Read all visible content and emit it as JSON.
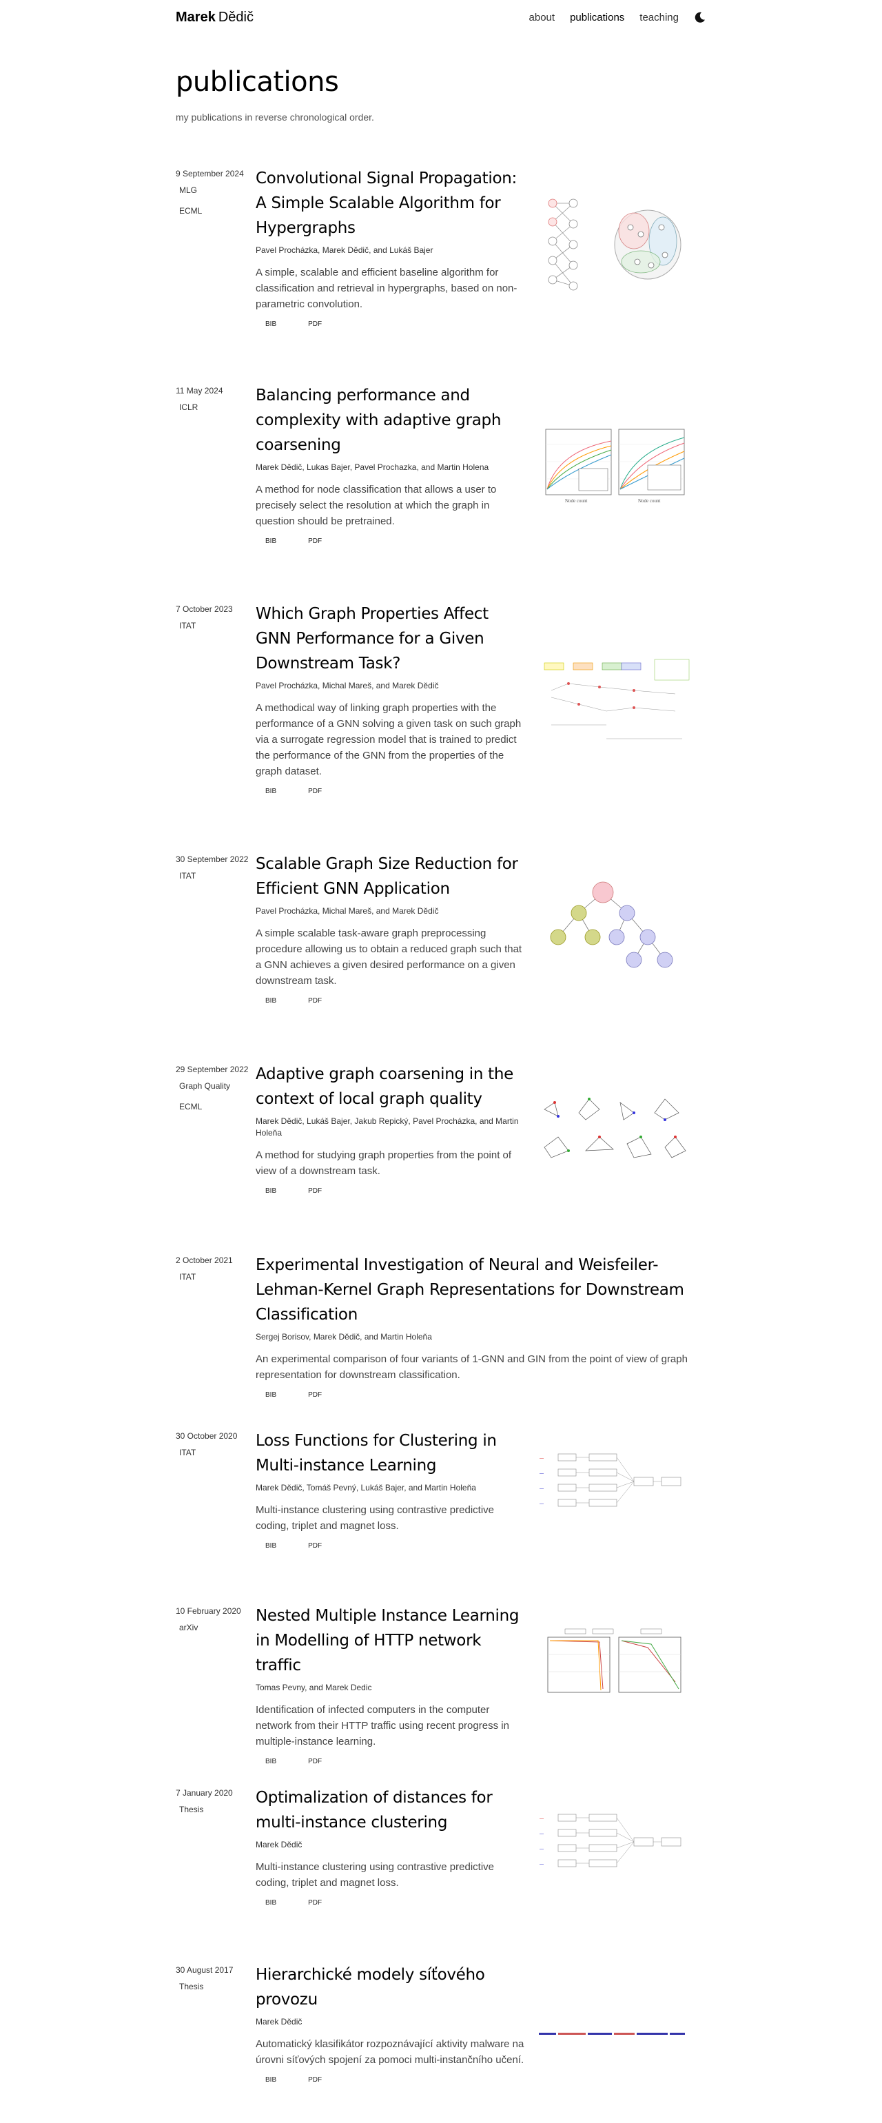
{
  "nav": {
    "brand_first": "Marek",
    "brand_last": "Dědič",
    "links": [
      "about",
      "publications",
      "teaching"
    ]
  },
  "page": {
    "title": "publications",
    "description": "my publications in reverse chronological order."
  },
  "publications": [
    {
      "date": "9 September 2024",
      "venues": [
        "MLG",
        "ECML"
      ],
      "title": "Convolutional Signal Propagation: A Simple Scalable Algorithm for Hypergraphs",
      "authors": "Pavel Procházka, Marek Dědič, and Lukáš Bajer",
      "abstract": "A simple, scalable and efficient baseline algorithm for classification and retrieval in hypergraphs, based on non-parametric convolution.",
      "links": [
        "BIB",
        "PDF"
      ]
    },
    {
      "date": "11 May 2024",
      "venues": [
        "ICLR"
      ],
      "title": "Balancing performance and complexity with adaptive graph coarsening",
      "authors": "Marek Dědič, Lukas Bajer, Pavel Prochazka, and Martin Holena",
      "abstract": "A method for node classification that allows a user to precisely select the resolution at which the graph in question should be pretrained.",
      "links": [
        "BIB",
        "PDF"
      ]
    },
    {
      "date": "7 October 2023",
      "venues": [
        "ITAT"
      ],
      "title": "Which Graph Properties Affect GNN Performance for a Given Downstream Task?",
      "authors": "Pavel Procházka, Michal Mareš, and Marek Dědič",
      "abstract": "A methodical way of linking graph properties with the performance of a GNN solving a given task on such graph via a surrogate regression model that is trained to predict the performance of the GNN from the properties of the graph dataset.",
      "links": [
        "BIB",
        "PDF"
      ]
    },
    {
      "date": "30 September 2022",
      "venues": [
        "ITAT"
      ],
      "title": "Scalable Graph Size Reduction for Efficient GNN Application",
      "authors": "Pavel Procházka, Michal Mareš, and Marek Dědič",
      "abstract": "A simple scalable task-aware graph preprocessing procedure allowing us to obtain a reduced graph such that a GNN achieves a given desired performance on a given downstream task.",
      "links": [
        "BIB",
        "PDF"
      ]
    },
    {
      "date": "29 September 2022",
      "venues": [
        "Graph Quality",
        "ECML"
      ],
      "title": "Adaptive graph coarsening in the context of local graph quality",
      "authors": "Marek Dědič, Lukáš Bajer, Jakub Repický, Pavel Procházka, and Martin Holeňa",
      "abstract": "A method for studying graph properties from the point of view of a downstream task.",
      "links": [
        "BIB",
        "PDF"
      ]
    },
    {
      "date": "2 October 2021",
      "venues": [
        "ITAT"
      ],
      "title": "Experimental Investigation of Neural and Weisfeiler-Lehman-Kernel Graph Representations for Downstream Classification",
      "authors": "Sergej Borisov, Marek Dědič, and Martin Holeňa",
      "abstract": "An experimental comparison of four variants of 1-GNN and GIN from the point of view of graph representation for downstream classification.",
      "links": [
        "BIB",
        "PDF"
      ]
    },
    {
      "date": "30 October 2020",
      "venues": [
        "ITAT"
      ],
      "title": "Loss Functions for Clustering in Multi-instance Learning",
      "authors": "Marek Dědič, Tomáš Pevný, Lukáš Bajer, and Martin Holeňa",
      "abstract": "Multi-instance clustering using contrastive predictive coding, triplet and magnet loss.",
      "links": [
        "BIB",
        "PDF"
      ]
    },
    {
      "date": "10 February 2020",
      "venues": [
        "arXiv"
      ],
      "title": "Nested Multiple Instance Learning in Modelling of HTTP network traffic",
      "authors": "Tomas Pevny, and Marek Dedic",
      "abstract": "Identification of infected computers in the computer network from their HTTP traffic using recent progress in multiple-instance learning.",
      "links": [
        "BIB",
        "PDF"
      ]
    },
    {
      "date": "7 January 2020",
      "venues": [
        "Thesis"
      ],
      "title": "Optimalization of distances for multi-instance clustering",
      "authors": "Marek Dědič",
      "abstract": "Multi-instance clustering using contrastive predictive coding, triplet and magnet loss.",
      "links": [
        "BIB",
        "PDF"
      ]
    },
    {
      "date": "30 August 2017",
      "venues": [
        "Thesis"
      ],
      "title": "Hierarchické modely síťového provozu",
      "authors": "Marek Dědič",
      "abstract": "Automatický klasifikátor rozpoznávající aktivity malware na úrovni síťových spojení za pomoci multi-instančního učení.",
      "links": [
        "BIB",
        "PDF"
      ]
    }
  ]
}
